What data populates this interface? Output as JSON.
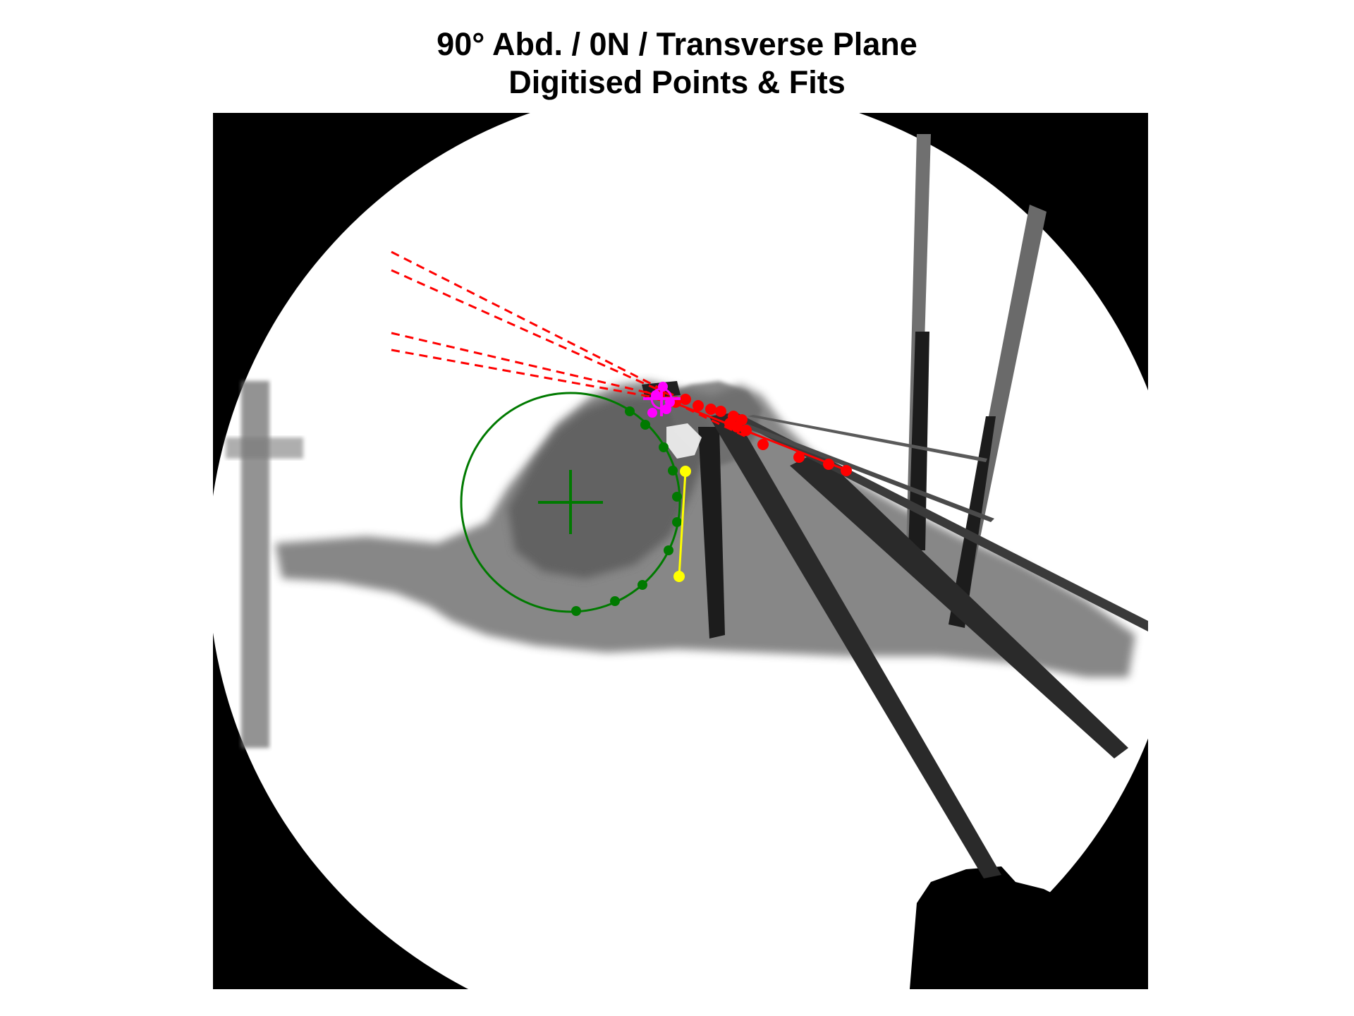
{
  "figure": {
    "title_line1": "90° Abd. / 0N / Transverse Plane",
    "title_line2": "Digitised Points & Fits"
  },
  "colors": {
    "background": "#ffffff",
    "fluoro_border": "#000000",
    "bone_tissue": "#5a5a5a",
    "red_fit": "#ff0000",
    "green_fit": "#007a00",
    "yellow_fit": "#ffff00",
    "magenta_marker": "#ff00ff"
  },
  "image": {
    "description_free": true
  }
}
